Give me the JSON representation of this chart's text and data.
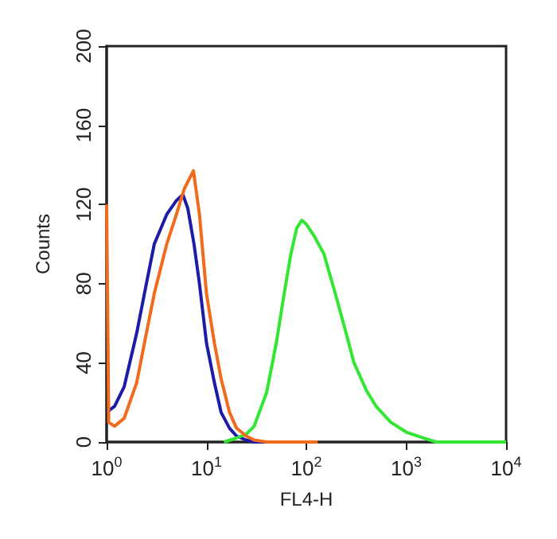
{
  "chart_data": {
    "type": "line",
    "xlabel": "FL4-H",
    "ylabel": "Counts",
    "log": "x",
    "marker": "none",
    "line_style": "solid",
    "xlim": [
      1,
      10000
    ],
    "xticks": [
      {
        "value": 1,
        "label": "10$^{0}$"
      },
      {
        "value": 10,
        "label": "10$^{1}$"
      },
      {
        "value": 100,
        "label": "10$^{2}$"
      },
      {
        "value": 1000,
        "label": "10$^{3}$"
      },
      {
        "value": 10000,
        "label": "10$^{4}$"
      }
    ],
    "ylim": [
      0,
      200
    ],
    "yticks": [
      0,
      40,
      80,
      120,
      160,
      200
    ],
    "series": [
      {
        "color": "#1c1ca8",
        "x": [
          1,
          1.2,
          1.5,
          2,
          2.5,
          3,
          3.5,
          4,
          5,
          5.8,
          6.5,
          7.5,
          8.5,
          10,
          12,
          14,
          17,
          20,
          25,
          30,
          100
        ],
        "values": [
          15,
          18,
          28,
          55,
          80,
          100,
          108,
          115,
          122,
          125,
          118,
          100,
          80,
          50,
          30,
          15,
          7,
          3,
          1,
          0,
          0
        ]
      },
      {
        "color": "#33e633",
        "x": [
          15,
          20,
          25,
          30,
          40,
          50,
          60,
          70,
          80,
          90,
          100,
          120,
          150,
          200,
          250,
          300,
          400,
          500,
          700,
          1000,
          1500,
          2000,
          10000
        ],
        "values": [
          0,
          2,
          4,
          8,
          25,
          50,
          75,
          95,
          108,
          112,
          110,
          104,
          95,
          73,
          55,
          40,
          26,
          18,
          10,
          5,
          2,
          0,
          0
        ]
      },
      {
        "color": "#f26b1d",
        "x": [
          1,
          1.05,
          1.2,
          1.5,
          2,
          2.5,
          3,
          4,
          5,
          6,
          7.4,
          8.5,
          10,
          12,
          14,
          17,
          20,
          25,
          30,
          40,
          130
        ],
        "values": [
          120,
          10,
          8,
          12,
          30,
          55,
          75,
          100,
          115,
          128,
          137,
          115,
          75,
          50,
          32,
          15,
          7,
          3,
          1,
          0,
          0
        ]
      }
    ]
  }
}
